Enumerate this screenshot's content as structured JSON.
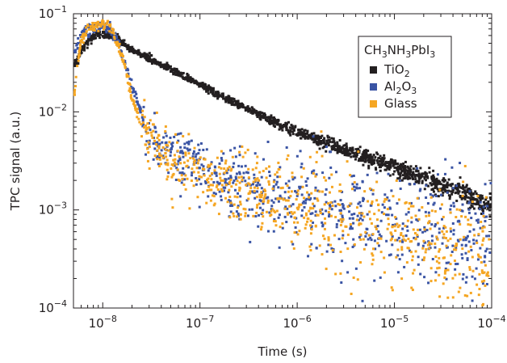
{
  "chart_data": {
    "type": "scatter",
    "xlabel": "Time (s)",
    "ylabel": "TPC signal (a.u.)",
    "xscale": "log",
    "yscale": "log",
    "xlim": [
      5e-09,
      0.0001
    ],
    "ylim": [
      0.0001,
      0.1
    ],
    "x_ticks": [
      {
        "value": 1e-08,
        "base": "10",
        "exp": "−8"
      },
      {
        "value": 1e-07,
        "base": "10",
        "exp": "−7"
      },
      {
        "value": 1e-06,
        "base": "10",
        "exp": "−6"
      },
      {
        "value": 1e-05,
        "base": "10",
        "exp": "−5"
      },
      {
        "value": 0.0001,
        "base": "10",
        "exp": "−4"
      }
    ],
    "y_ticks": [
      {
        "value": 0.0001,
        "base": "10",
        "exp": "−4"
      },
      {
        "value": 0.001,
        "base": "10",
        "exp": "−3"
      },
      {
        "value": 0.01,
        "base": "10",
        "exp": "−2"
      },
      {
        "value": 0.1,
        "base": "10",
        "exp": "−1"
      }
    ],
    "grid": false,
    "legend": {
      "placement": "top-right",
      "title": {
        "parts": [
          {
            "t": "CH",
            "sub": false
          },
          {
            "t": "3",
            "sub": true
          },
          {
            "t": "NH",
            "sub": false
          },
          {
            "t": "3",
            "sub": true
          },
          {
            "t": "PbI",
            "sub": false
          },
          {
            "t": "3",
            "sub": true
          }
        ]
      }
    },
    "series": [
      {
        "name": "TiO2",
        "label_parts": [
          {
            "t": "TiO",
            "sub": false
          },
          {
            "t": "2",
            "sub": true
          }
        ],
        "color": "#231f20",
        "x": [
          5e-09,
          6e-09,
          7e-09,
          8e-09,
          9e-09,
          1.1e-08,
          1.3e-08,
          1.6e-08,
          2e-08,
          3e-08,
          5e-08,
          1e-07,
          2e-07,
          5e-07,
          1e-06,
          2e-06,
          5e-06,
          1e-05,
          2e-05,
          5e-05,
          8e-05,
          0.0001
        ],
        "y": [
          0.028,
          0.042,
          0.052,
          0.058,
          0.061,
          0.062,
          0.058,
          0.05,
          0.043,
          0.035,
          0.027,
          0.019,
          0.013,
          0.0085,
          0.0062,
          0.0048,
          0.0035,
          0.0027,
          0.0021,
          0.0015,
          0.0012,
          0.0011
        ]
      },
      {
        "name": "Al2O3",
        "label_parts": [
          {
            "t": "Al",
            "sub": false
          },
          {
            "t": "2",
            "sub": true
          },
          {
            "t": "O",
            "sub": false
          },
          {
            "t": "3",
            "sub": true
          }
        ],
        "color": "#3a54a4",
        "x": [
          5e-09,
          6e-09,
          7e-09,
          8e-09,
          1e-08,
          1.15e-08,
          1.4e-08,
          1.7e-08,
          2e-08,
          2.5e-08,
          3e-08,
          3.5e-08,
          4e-08,
          5e-08,
          1e-07,
          1e-06,
          1e-05,
          0.0001
        ],
        "y": [
          0.04,
          0.06,
          0.068,
          0.072,
          0.075,
          0.073,
          0.055,
          0.032,
          0.018,
          0.0095,
          0.0065,
          0.005,
          0.0042,
          0.0035,
          0.0025,
          0.0012,
          0.0007,
          0.0004
        ]
      },
      {
        "name": "Glass",
        "label_parts": [
          {
            "t": "Glass",
            "sub": false
          }
        ],
        "color": "#f5a623",
        "x": [
          5e-09,
          6e-09,
          7e-09,
          8e-09,
          1e-08,
          1.15e-08,
          1.4e-08,
          1.7e-08,
          2e-08,
          2.5e-08,
          3e-08,
          3.5e-08,
          4e-08,
          5e-08,
          1e-07,
          1e-06,
          1e-05,
          0.0001
        ],
        "y": [
          0.013,
          0.055,
          0.068,
          0.073,
          0.077,
          0.076,
          0.053,
          0.028,
          0.014,
          0.0075,
          0.0055,
          0.0045,
          0.0038,
          0.0032,
          0.0023,
          0.0011,
          0.0006,
          0.00035
        ]
      }
    ]
  }
}
